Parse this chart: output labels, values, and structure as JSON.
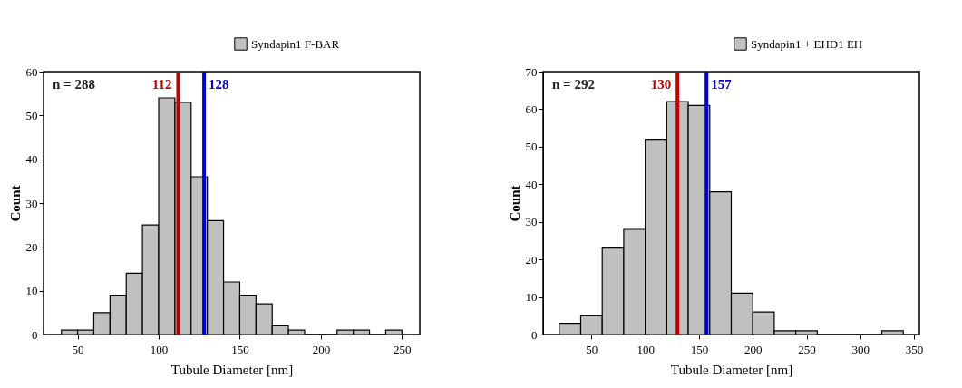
{
  "chart_data": [
    {
      "type": "histogram",
      "xlabel": "Tubule Diameter [nm]",
      "ylabel": "Count",
      "bins": [
        40,
        50,
        60,
        70,
        80,
        90,
        100,
        110,
        120,
        130,
        140,
        150,
        160,
        170,
        180,
        190,
        200,
        210,
        220,
        230,
        240,
        250
      ],
      "series": [
        {
          "name": "Syndapin1 F-BAR",
          "color": "#c0c0c0",
          "values": [
            1,
            1,
            5,
            9,
            14,
            25,
            54,
            53,
            36,
            26,
            12,
            9,
            7,
            2,
            1,
            0,
            0,
            1,
            1,
            0,
            1
          ]
        }
      ],
      "xlim": [
        29,
        261
      ],
      "xticks": [
        50,
        100,
        150,
        200,
        250
      ],
      "ylim": [
        0,
        60
      ],
      "yticks": [
        0,
        10,
        20,
        30,
        40,
        50,
        60
      ],
      "ref_lines": [
        {
          "axis": "x",
          "value": 112,
          "label": "112",
          "color": "#c00000"
        },
        {
          "axis": "x",
          "value": 128,
          "label": "128",
          "color": "#0000cc"
        }
      ],
      "annotations": [
        "n = 288"
      ],
      "legend": "top right",
      "grid": false
    },
    {
      "type": "histogram",
      "xlabel": "Tubule Diameter [nm]",
      "ylabel": "Count",
      "bins": [
        20,
        40,
        60,
        80,
        100,
        120,
        140,
        160,
        180,
        200,
        220,
        240,
        260,
        280,
        300,
        320,
        340
      ],
      "series": [
        {
          "name": "Syndapin1 + EHD1 EH",
          "color": "#c0c0c0",
          "values": [
            3,
            5,
            23,
            28,
            52,
            62,
            61,
            38,
            11,
            6,
            1,
            1,
            0,
            0,
            0,
            1
          ]
        }
      ],
      "xlim": [
        5,
        355
      ],
      "xticks": [
        50,
        100,
        150,
        200,
        250,
        300,
        350
      ],
      "ylim": [
        0,
        70
      ],
      "yticks": [
        0,
        10,
        20,
        30,
        40,
        50,
        60,
        70
      ],
      "ref_lines": [
        {
          "axis": "x",
          "value": 130,
          "label": "130",
          "color": "#c00000"
        },
        {
          "axis": "x",
          "value": 157,
          "label": "157",
          "color": "#0000cc"
        }
      ],
      "annotations": [
        "n = 292"
      ],
      "legend": "top right",
      "grid": false
    }
  ]
}
